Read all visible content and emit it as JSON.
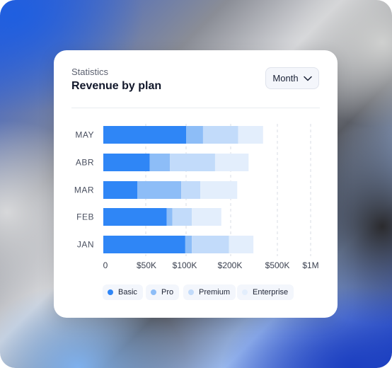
{
  "card": {
    "kicker": "Statistics",
    "title": "Revenue by plan",
    "period_select": "Month"
  },
  "colors": {
    "Basic": "#2f86f6",
    "Pro": "#8dbdf7",
    "Premium": "#c2dbfa",
    "Enterprise": "#e3eefc"
  },
  "chart_data": {
    "type": "bar",
    "orientation": "horizontal",
    "stacked": true,
    "categories": [
      "MAY",
      "ABR",
      "MAR",
      "FEB",
      "JAN"
    ],
    "x_ticks": [
      "0",
      "$50K",
      "$100K",
      "$200K",
      "$500K",
      "$1M"
    ],
    "x_tick_values": [
      0,
      50000,
      100000,
      200000,
      500000,
      1000000
    ],
    "x_scale": "nonlinear (ticks equally spaced)",
    "series": [
      {
        "name": "Basic",
        "values": [
          100000,
          55000,
          40000,
          76000,
          99000
        ]
      },
      {
        "name": "Pro",
        "values": [
          38000,
          25000,
          54000,
          7000,
          14000
        ]
      },
      {
        "name": "Premium",
        "values": [
          110000,
          85000,
          38000,
          30000,
          83000
        ]
      },
      {
        "name": "Enterprise",
        "values": [
          160000,
          150000,
          110000,
          66000,
          150000
        ]
      }
    ],
    "grid": "vertical dashed",
    "legend_position": "bottom"
  }
}
